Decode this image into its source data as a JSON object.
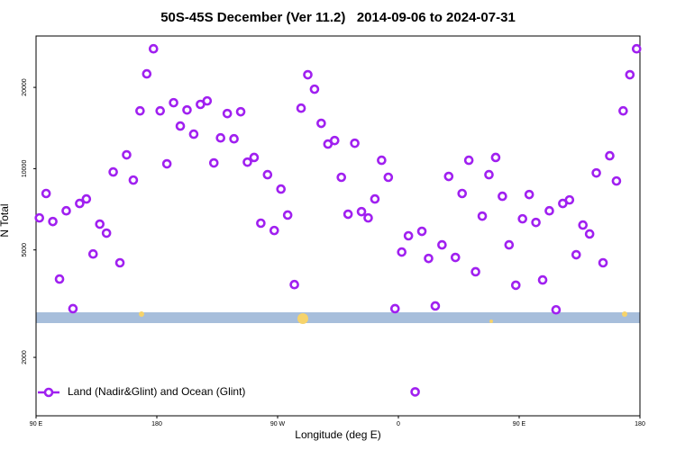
{
  "chart_data": {
    "type": "scatter",
    "title": "50S-45S December (Ver 11.2)   2014-09-06 to 2024-07-31",
    "xlabel": "Longitude (deg E)",
    "ylabel": "N Total",
    "log_y": true,
    "legend": "lower left",
    "xlim": [
      -270,
      180
    ],
    "xticks": [
      {
        "value": -270,
        "label": "90 E"
      },
      {
        "value": -180,
        "label": "180"
      },
      {
        "value": -90,
        "label": "90 W"
      },
      0,
      {
        "value": 90,
        "label": "90 E"
      },
      180
    ],
    "ylim": [
      1215,
      31000
    ],
    "yticks": [
      2000,
      5000,
      10000,
      20000
    ],
    "x": [
      -267.5,
      -262.5,
      -257.5,
      -252.5,
      -247.5,
      -242.5,
      -237.5,
      -232.5,
      -227.5,
      -222.5,
      -217.5,
      -212.5,
      -207.5,
      -202.5,
      -197.5,
      -192.5,
      -187.5,
      -182.5,
      -177.5,
      -172.5,
      -167.5,
      -162.5,
      -157.5,
      -152.5,
      -147.5,
      -142.5,
      -137.5,
      -132.5,
      -127.5,
      -122.5,
      -117.5,
      -112.5,
      -107.5,
      -102.5,
      -97.5,
      -92.5,
      -87.5,
      -82.5,
      -77.5,
      -72.5,
      -67.5,
      -62.5,
      -57.5,
      -52.5,
      -47.5,
      -42.5,
      -37.5,
      -32.5,
      -27.5,
      -22.5,
      -17.5,
      -12.5,
      -7.5,
      -2.5,
      2.5,
      7.5,
      12.5,
      17.5,
      22.5,
      27.5,
      32.5,
      37.5,
      42.5,
      47.5,
      52.5,
      57.5,
      62.5,
      67.5,
      72.5,
      77.5,
      82.5,
      87.5,
      92.5,
      97.5,
      102.5,
      107.5,
      112.5,
      117.5,
      122.5,
      127.5,
      132.5,
      137.5,
      142.5,
      147.5,
      152.5,
      157.5,
      162.5,
      167.5,
      172.5,
      177.5
    ],
    "series": [
      {
        "name": "Land (Nadir&Glint) and Ocean (Glint)",
        "color": "#a020f0",
        "values": [
          6570,
          8090,
          6370,
          3900,
          6980,
          3030,
          7430,
          7720,
          4830,
          6230,
          5770,
          9720,
          4480,
          11250,
          9070,
          16370,
          22440,
          27800,
          16370,
          10420,
          17550,
          14380,
          16500,
          13420,
          17300,
          17820,
          10500,
          13000,
          16000,
          12900,
          16250,
          10570,
          11000,
          6280,
          9500,
          5900,
          8400,
          6730,
          3720,
          16750,
          22280,
          19690,
          14720,
          12330,
          12710,
          9290,
          6780,
          12420,
          6930,
          6570,
          7720,
          10740,
          9290,
          3030,
          4910,
          5640,
          1490,
          5860,
          4650,
          3100,
          5220,
          9360,
          4690,
          8090,
          10740,
          4150,
          6670,
          9500,
          11000,
          7900,
          5220,
          3700,
          6520,
          8020,
          6320,
          3870,
          6980,
          3000,
          7430,
          7660,
          4800,
          6180,
          5730,
          9640,
          4480,
          11160,
          9000,
          16370,
          22280,
          27800
        ]
      }
    ]
  }
}
